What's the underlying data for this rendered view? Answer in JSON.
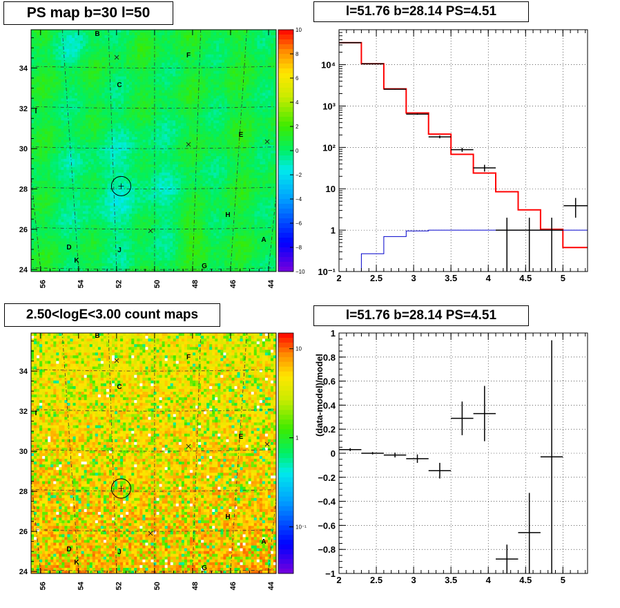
{
  "chart_data": [
    {
      "type": "heatmap",
      "title": "PS map b=30 l=50",
      "x_ticks": [
        "56",
        "54",
        "52",
        "50",
        "48",
        "46",
        "44"
      ],
      "x_tick_values": [
        56,
        54,
        52,
        50,
        48,
        46,
        44
      ],
      "xlim": [
        56.5,
        43.6
      ],
      "y_ticks": [
        "24",
        "26",
        "28",
        "30",
        "32",
        "34"
      ],
      "y_tick_values": [
        24,
        26,
        28,
        30,
        32,
        34
      ],
      "ylim": [
        23.9,
        35.9
      ],
      "colorbar_ticks": [
        "10",
        "8",
        "6",
        "4",
        "2",
        "0",
        "−2",
        "−4",
        "−6",
        "−8",
        "−10"
      ],
      "colorbar_range": [
        -10,
        10
      ],
      "source_labels": [
        "B",
        "F",
        "C",
        "I",
        "E",
        "H",
        "D",
        "J",
        "A",
        "K",
        "G"
      ],
      "marker": {
        "l": 51.76,
        "b": 28.14
      }
    },
    {
      "type": "line",
      "title": "l=51.76 b=28.14 PS=4.51",
      "xlim": [
        2,
        5.33
      ],
      "x_ticks": [
        "2",
        "2.5",
        "3",
        "3.5",
        "4",
        "4.5",
        "5"
      ],
      "x_tick_values": [
        2,
        2.5,
        3,
        3.5,
        4,
        4.5,
        5
      ],
      "y_scale": "log",
      "ylim": [
        0.1,
        70000
      ],
      "y_ticks": [
        "10⁻¹",
        "1",
        "10",
        "10²",
        "10³",
        "10⁴"
      ],
      "y_tick_values": [
        0.1,
        1,
        10,
        100,
        1000,
        10000
      ],
      "grid": true,
      "series": [
        {
          "color": "#ff0000",
          "edges": [
            2,
            2.3,
            2.6,
            2.9,
            3.2,
            3.5,
            3.8,
            4.1,
            4.4,
            4.7,
            5.0,
            5.33
          ],
          "values": [
            34000,
            10500,
            2600,
            680,
            210,
            68,
            24,
            8.5,
            3.1,
            1.05,
            0.38
          ]
        },
        {
          "color": "#0000cc",
          "edges": [
            2,
            2.3,
            2.6,
            2.9,
            3.2,
            3.5,
            3.8,
            4.1,
            4.4,
            4.7,
            5.0,
            5.33
          ],
          "values": [
            0.1,
            0.27,
            0.7,
            0.96,
            1,
            1,
            1,
            1,
            1,
            1,
            1
          ]
        },
        {
          "color": "#000000",
          "points": [
            {
              "x": 2.15,
              "xerr": 0.15,
              "y": 34000,
              "ylo": 33600,
              "yhi": 34400
            },
            {
              "x": 2.45,
              "xerr": 0.15,
              "y": 10500,
              "ylo": 10300,
              "yhi": 10700
            },
            {
              "x": 2.75,
              "xerr": 0.15,
              "y": 2550,
              "ylo": 2500,
              "yhi": 2600
            },
            {
              "x": 3.05,
              "xerr": 0.15,
              "y": 640,
              "ylo": 615,
              "yhi": 665
            },
            {
              "x": 3.35,
              "xerr": 0.15,
              "y": 180,
              "ylo": 166,
              "yhi": 194
            },
            {
              "x": 3.65,
              "xerr": 0.15,
              "y": 88,
              "ylo": 78,
              "yhi": 98
            },
            {
              "x": 3.95,
              "xerr": 0.15,
              "y": 32,
              "ylo": 26,
              "yhi": 38
            },
            {
              "x": 4.25,
              "xerr": 0.15,
              "y": 1,
              "ylo": 0.1,
              "yhi": 2
            },
            {
              "x": 4.55,
              "xerr": 0.15,
              "y": 1,
              "ylo": 0.1,
              "yhi": 2
            },
            {
              "x": 4.85,
              "xerr": 0.15,
              "y": 1,
              "ylo": 0.1,
              "yhi": 2
            },
            {
              "x": 5.17,
              "xerr": 0.16,
              "y": 3.9,
              "ylo": 2,
              "yhi": 6
            }
          ]
        }
      ]
    },
    {
      "type": "heatmap",
      "title": "2.50<logE<3.00 count maps",
      "x_ticks": [
        "56",
        "54",
        "52",
        "50",
        "48",
        "46",
        "44"
      ],
      "x_tick_values": [
        56,
        54,
        52,
        50,
        48,
        46,
        44
      ],
      "xlim": [
        56.5,
        43.6
      ],
      "y_ticks": [
        "24",
        "26",
        "28",
        "30",
        "32",
        "34"
      ],
      "y_tick_values": [
        24,
        26,
        28,
        30,
        32,
        34
      ],
      "ylim": [
        23.9,
        35.9
      ],
      "colorbar_scale": "log",
      "colorbar_ticks": [
        "10",
        "1",
        "10⁻¹"
      ],
      "colorbar_tick_values": [
        10,
        1,
        0.1
      ],
      "colorbar_range": [
        0.03,
        15
      ],
      "source_labels": [
        "B",
        "F",
        "C",
        "I",
        "E",
        "H",
        "D",
        "J",
        "A",
        "K",
        "G"
      ],
      "marker": {
        "l": 51.76,
        "b": 28.14
      }
    },
    {
      "type": "scatter",
      "title": "l=51.76 b=28.14 PS=4.51",
      "ylabel": "(data-model)/model",
      "xlim": [
        2,
        5.33
      ],
      "x_ticks": [
        "2",
        "2.5",
        "3",
        "3.5",
        "4",
        "4.5",
        "5"
      ],
      "x_tick_values": [
        2,
        2.5,
        3,
        3.5,
        4,
        4.5,
        5
      ],
      "ylim": [
        -1,
        1
      ],
      "y_ticks": [
        "−1",
        "−0.8",
        "−0.6",
        "−0.4",
        "−0.2",
        "0",
        "0.2",
        "0.4",
        "0.6",
        "0.8",
        "1"
      ],
      "y_tick_values": [
        -1,
        -0.8,
        -0.6,
        -0.4,
        -0.2,
        0,
        0.2,
        0.4,
        0.6,
        0.8,
        1
      ],
      "grid": true,
      "points": [
        {
          "x": 2.15,
          "xerr": 0.15,
          "y": 0.03,
          "ylo": 0.018,
          "yhi": 0.042
        },
        {
          "x": 2.45,
          "xerr": 0.15,
          "y": 0.0,
          "ylo": -0.01,
          "yhi": 0.01
        },
        {
          "x": 2.75,
          "xerr": 0.15,
          "y": -0.015,
          "ylo": -0.035,
          "yhi": 0.005
        },
        {
          "x": 3.05,
          "xerr": 0.15,
          "y": -0.045,
          "ylo": -0.08,
          "yhi": -0.01
        },
        {
          "x": 3.35,
          "xerr": 0.15,
          "y": -0.145,
          "ylo": -0.21,
          "yhi": -0.08
        },
        {
          "x": 3.65,
          "xerr": 0.15,
          "y": 0.29,
          "ylo": 0.15,
          "yhi": 0.43
        },
        {
          "x": 3.95,
          "xerr": 0.15,
          "y": 0.33,
          "ylo": 0.1,
          "yhi": 0.56
        },
        {
          "x": 4.25,
          "xerr": 0.15,
          "y": -0.88,
          "ylo": -1,
          "yhi": -0.76
        },
        {
          "x": 4.55,
          "xerr": 0.15,
          "y": -0.66,
          "ylo": -1,
          "yhi": -0.33
        },
        {
          "x": 4.85,
          "xerr": 0.15,
          "y": -0.03,
          "ylo": -1,
          "yhi": 0.94
        }
      ]
    }
  ]
}
